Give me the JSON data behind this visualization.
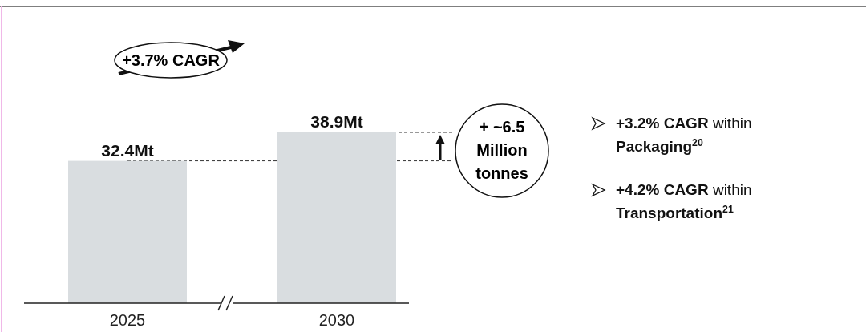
{
  "chart_data": {
    "type": "bar",
    "categories": [
      "2025",
      "2030"
    ],
    "values": [
      32.4,
      38.9
    ],
    "color": "#d9dde0",
    "value_labels": [
      "32.4Mt",
      "38.9Mt"
    ],
    "ref_lines": [
      {
        "axis": "y",
        "value": 32.4,
        "line_style": "dashed"
      },
      {
        "axis": "y",
        "value": 38.9,
        "line_style": "dashed"
      }
    ],
    "annotations": [
      "+3.7% CAGR",
      "+ ~6.5 Million tonnes",
      "+3.2% CAGR within Packaging$^{20}$",
      "+4.2% CAGR within Transportation$^{21}$"
    ]
  }
}
